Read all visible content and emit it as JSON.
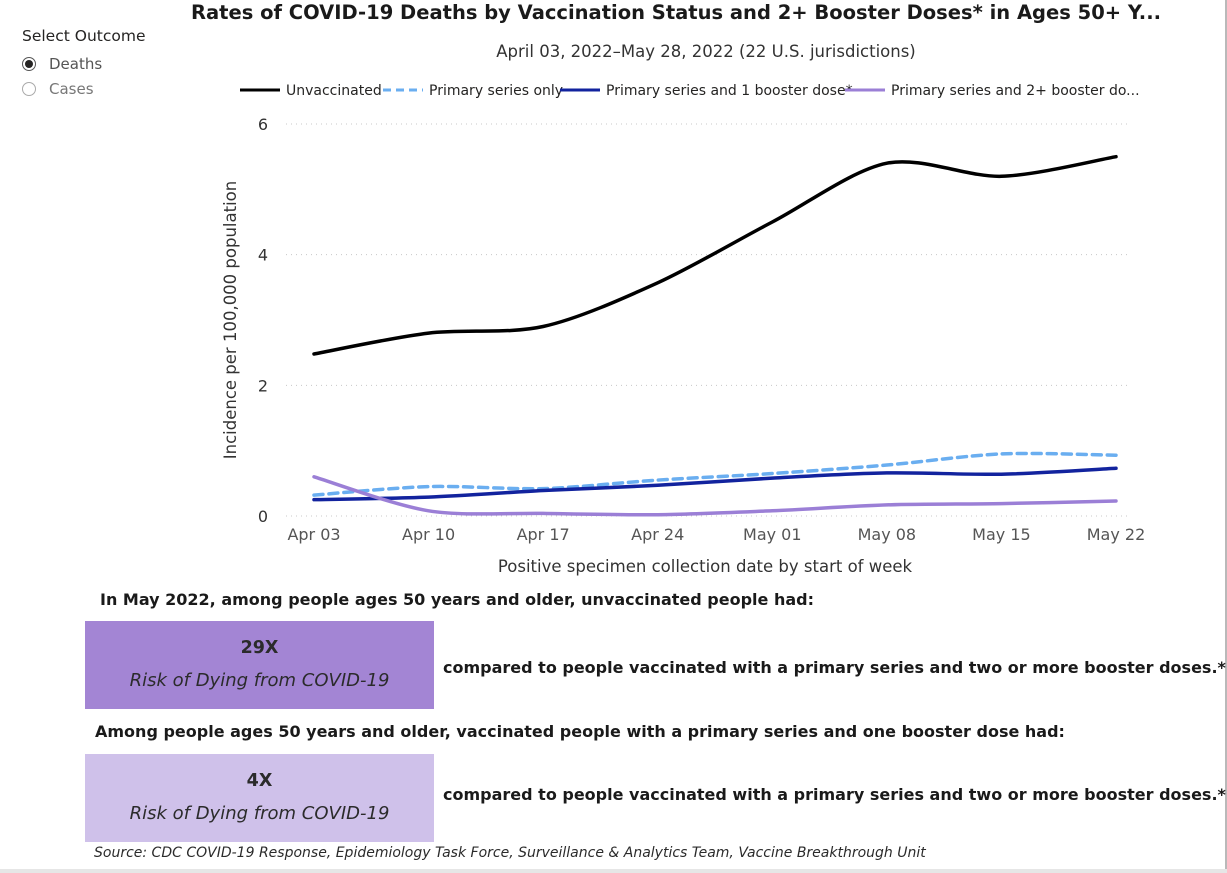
{
  "slicer": {
    "title": "Select Outcome",
    "options": [
      {
        "label": "Deaths",
        "selected": true
      },
      {
        "label": "Cases",
        "selected": false
      }
    ]
  },
  "chart_data": {
    "type": "line",
    "title": "Rates of COVID-19 Deaths by Vaccination Status and 2+ Booster Doses* in Ages 50+ Y...",
    "subtitle": "April 03, 2022–May 28, 2022 (22 U.S. jurisdictions)",
    "xlabel": "Positive specimen collection date by start of week",
    "ylabel": "Incidence per 100,000 population",
    "categories": [
      "Apr 03",
      "Apr 10",
      "Apr 17",
      "Apr 24",
      "May 01",
      "May 08",
      "May 15",
      "May 22"
    ],
    "ylim": [
      0,
      6
    ],
    "yticks": [
      0,
      2,
      4,
      6
    ],
    "grid": true,
    "legend_position": "top",
    "series": [
      {
        "name": "Unvaccinated",
        "color": "#000000",
        "style": "solid",
        "values": [
          2.48,
          2.8,
          2.9,
          3.57,
          4.5,
          5.4,
          5.2,
          5.5
        ]
      },
      {
        "name": "Primary series only",
        "color": "#6aaef0",
        "style": "dashed",
        "values": [
          0.32,
          0.45,
          0.42,
          0.55,
          0.65,
          0.78,
          0.95,
          0.93
        ]
      },
      {
        "name": "Primary series and 1 booster dose*",
        "color": "#12239e",
        "style": "solid",
        "values": [
          0.25,
          0.29,
          0.39,
          0.47,
          0.58,
          0.66,
          0.64,
          0.73
        ]
      },
      {
        "name": "Primary series and 2+ booster do...",
        "color": "#9b7fd6",
        "style": "solid",
        "values": [
          0.6,
          0.08,
          0.04,
          0.02,
          0.08,
          0.17,
          0.19,
          0.23
        ]
      }
    ]
  },
  "summary": {
    "intro_1": "In May 2022, among people ages 50 years and older, unvaccinated people had:",
    "box_1": {
      "value": "29X",
      "label": "Risk of Dying from COVID-19",
      "color": "#a385d4"
    },
    "compare_1": "compared to people vaccinated with a primary series and two or more booster doses.*",
    "intro_2": "Among people ages 50 years and older, vaccinated people with a primary series and one booster dose had:",
    "box_2": {
      "value": "4X",
      "label": "Risk of Dying from COVID-19",
      "color": "#cfc1ea"
    },
    "compare_2": "compared to people vaccinated with a primary series and two or more booster doses.*"
  },
  "source": "Source: CDC COVID-19 Response, Epidemiology Task Force, Surveillance & Analytics Team, Vaccine Breakthrough Unit"
}
